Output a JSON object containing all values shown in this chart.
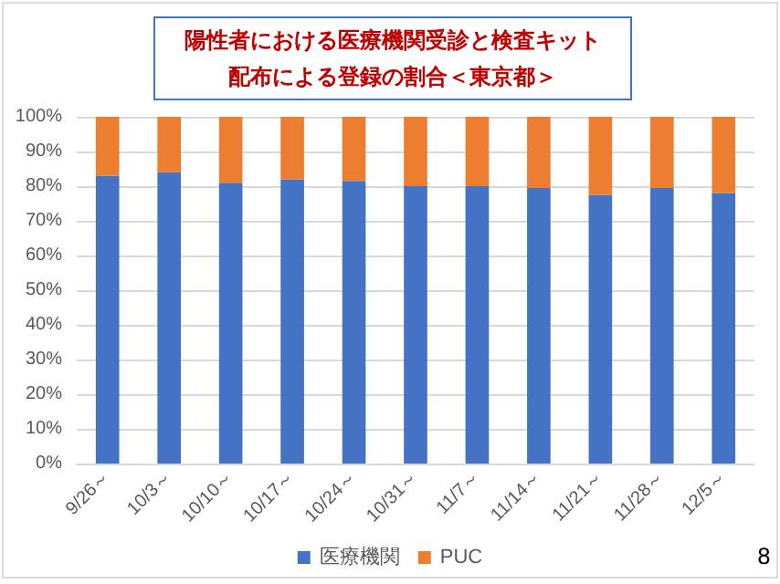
{
  "chart_data": {
    "type": "bar",
    "title": "陽性者における医療機関受診と検査キット配布による登録の割合＜東京都＞",
    "stacked": true,
    "categories": [
      "9/26～",
      "10/3～",
      "10/10～",
      "10/17～",
      "10/24～",
      "10/31～",
      "11/7～",
      "11/14～",
      "11/21～",
      "11/28～",
      "12/5～"
    ],
    "series": [
      {
        "name": "医療機関",
        "color": "#4472c4",
        "values": [
          83,
          84,
          81,
          82,
          81.5,
          80,
          80,
          79.5,
          77.5,
          79.5,
          78
        ]
      },
      {
        "name": "PUC",
        "color": "#ed7d31",
        "values": [
          17,
          16,
          19,
          18,
          18.5,
          20,
          20,
          20.5,
          22.5,
          20.5,
          22
        ]
      }
    ],
    "ylim": [
      0,
      100
    ],
    "yticks": [
      {
        "value": 0,
        "label": "0%"
      },
      {
        "value": 10,
        "label": "10%"
      },
      {
        "value": 20,
        "label": "20%"
      },
      {
        "value": 30,
        "label": "30%"
      },
      {
        "value": 40,
        "label": "40%"
      },
      {
        "value": 50,
        "label": "50%"
      },
      {
        "value": 60,
        "label": "60%"
      },
      {
        "value": 70,
        "label": "70%"
      },
      {
        "value": 80,
        "label": "80%"
      },
      {
        "value": 90,
        "label": "90%"
      },
      {
        "value": 100,
        "label": "100%"
      }
    ],
    "grid": "y",
    "legend": "bottom",
    "annotations": [
      "8"
    ]
  }
}
